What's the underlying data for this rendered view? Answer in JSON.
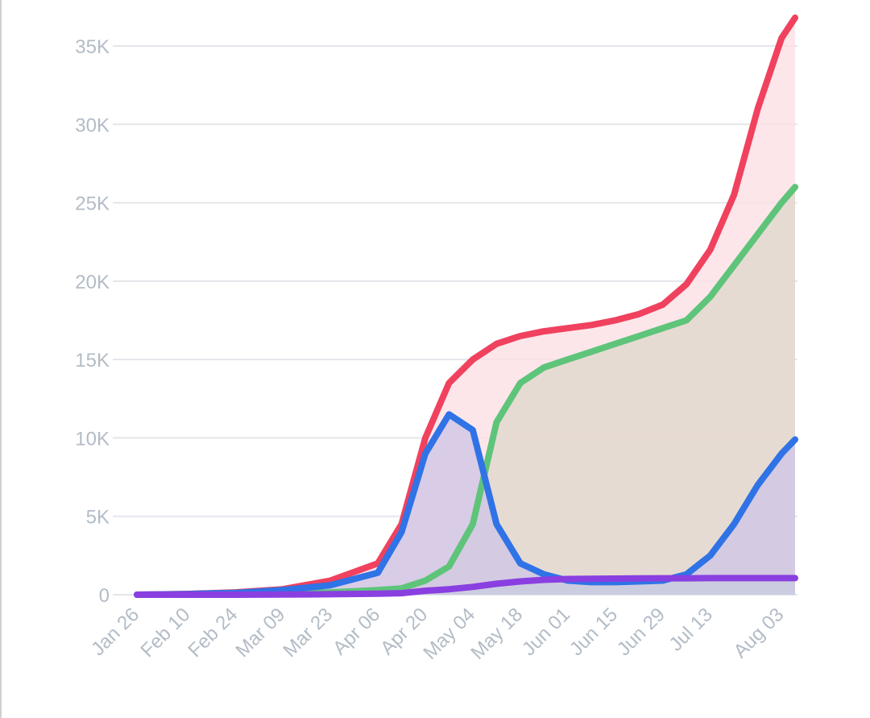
{
  "chart_data": {
    "type": "area",
    "title": "",
    "xlabel": "",
    "ylabel": "",
    "x_ticks": [
      "Jan 26",
      "Feb 10",
      "Feb 24",
      "Mar 09",
      "Mar 23",
      "Apr 06",
      "Apr 20",
      "May 04",
      "May 18",
      "Jun 01",
      "Jun 15",
      "Jun 29",
      "Jul 13",
      "Aug 03"
    ],
    "x_range": [
      "Jan 26",
      "Aug 07"
    ],
    "y_ticks": [
      "0",
      "5K",
      "10K",
      "15K",
      "20K",
      "25K",
      "30K",
      "35K"
    ],
    "ylim": [
      0,
      35000
    ],
    "grid": true,
    "legend": "none",
    "x": [
      "Jan 26",
      "Feb 10",
      "Feb 24",
      "Mar 09",
      "Mar 23",
      "Apr 06",
      "Apr 13",
      "Apr 20",
      "Apr 27",
      "May 04",
      "May 11",
      "May 18",
      "May 25",
      "Jun 01",
      "Jun 08",
      "Jun 15",
      "Jun 22",
      "Jun 29",
      "Jul 06",
      "Jul 13",
      "Jul 20",
      "Jul 27",
      "Aug 03",
      "Aug 07"
    ],
    "series": [
      {
        "color": "#f0415e",
        "fill": "#fde0e5",
        "values": [
          0,
          50,
          150,
          350,
          900,
          2000,
          4500,
          10000,
          13500,
          15000,
          16000,
          16500,
          16800,
          17000,
          17200,
          17500,
          17900,
          18500,
          19800,
          22000,
          25500,
          31000,
          35500,
          36800
        ]
      },
      {
        "color": "#5ec47a",
        "fill": "#e0d8cc",
        "values": [
          0,
          10,
          30,
          60,
          150,
          300,
          400,
          900,
          1800,
          4500,
          11000,
          13500,
          14500,
          15000,
          15500,
          16000,
          16500,
          17000,
          17500,
          19000,
          21000,
          23000,
          25000,
          26000
        ]
      },
      {
        "color": "#2f73e6",
        "fill": "#cfc6e6",
        "values": [
          0,
          40,
          120,
          300,
          600,
          1400,
          4000,
          9000,
          11500,
          10500,
          4500,
          2000,
          1300,
          900,
          800,
          800,
          850,
          900,
          1300,
          2500,
          4500,
          7000,
          9000,
          9900
        ]
      },
      {
        "color": "#8a3fe0",
        "fill": "#c8cce0",
        "values": [
          0,
          0,
          0,
          10,
          30,
          60,
          100,
          250,
          350,
          500,
          700,
          850,
          950,
          1000,
          1020,
          1030,
          1040,
          1050,
          1050,
          1060,
          1060,
          1060,
          1060,
          1060
        ]
      }
    ]
  }
}
